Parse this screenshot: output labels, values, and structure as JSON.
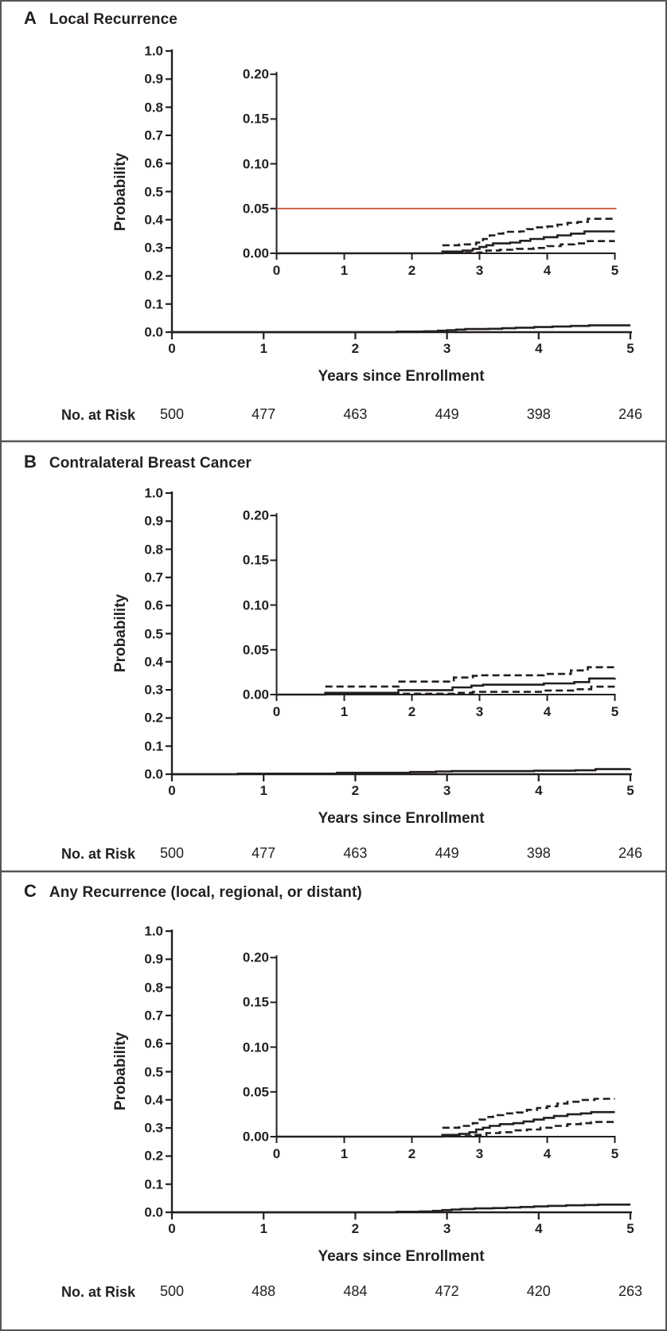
{
  "figure": {
    "border_color": "#55565a",
    "axis_color": "#231f20",
    "text_color": "#231f20",
    "reference_red": "#d0513b"
  },
  "chart_data": [
    {
      "type": "line",
      "panel": "A",
      "title": "Local Recurrence",
      "main_axes": {
        "ylabel": "Probability",
        "xlabel": "Years since Enrollment",
        "xlim": [
          0,
          5
        ],
        "ylim": [
          0,
          1
        ],
        "xticks": [
          "0",
          "1",
          "2",
          "3",
          "4",
          "5"
        ],
        "yticks": [
          "0.0",
          "0.1",
          "0.2",
          "0.3",
          "0.4",
          "0.5",
          "0.6",
          "0.7",
          "0.8",
          "0.9",
          "1.0"
        ],
        "grid": "off"
      },
      "inset_axes": {
        "xlim": [
          0,
          5
        ],
        "ylim": [
          0,
          0.2
        ],
        "xticks": [
          "0",
          "1",
          "2",
          "3",
          "4",
          "5"
        ],
        "yticks": [
          "0.00",
          "0.05",
          "0.10",
          "0.15",
          "0.20"
        ]
      },
      "reference_line": {
        "y": 0.05,
        "color": "#d0513b"
      },
      "series": [
        {
          "name": "estimate",
          "style": "solid",
          "points": [
            [
              0,
              0
            ],
            [
              2.45,
              0.002
            ],
            [
              2.75,
              0.003
            ],
            [
              2.9,
              0.005
            ],
            [
              3.0,
              0.007
            ],
            [
              3.1,
              0.009
            ],
            [
              3.2,
              0.011
            ],
            [
              3.45,
              0.012
            ],
            [
              3.6,
              0.014
            ],
            [
              3.75,
              0.016
            ],
            [
              3.95,
              0.018
            ],
            [
              4.15,
              0.02
            ],
            [
              4.35,
              0.022
            ],
            [
              4.55,
              0.0245
            ],
            [
              5,
              0.0245
            ]
          ]
        },
        {
          "name": "upper-95ci",
          "style": "dashed",
          "points": [
            [
              2.45,
              0.009
            ],
            [
              2.7,
              0.01
            ],
            [
              2.95,
              0.012
            ],
            [
              3.05,
              0.016
            ],
            [
              3.15,
              0.02
            ],
            [
              3.25,
              0.022
            ],
            [
              3.35,
              0.024
            ],
            [
              3.6,
              0.0245
            ],
            [
              3.7,
              0.027
            ],
            [
              3.85,
              0.029
            ],
            [
              4.0,
              0.03
            ],
            [
              4.15,
              0.032
            ],
            [
              4.3,
              0.034
            ],
            [
              4.45,
              0.035
            ],
            [
              4.6,
              0.0385
            ],
            [
              5,
              0.0385
            ]
          ]
        },
        {
          "name": "lower-95ci",
          "style": "dashed",
          "points": [
            [
              2.45,
              0.0005
            ],
            [
              3.0,
              0.001
            ],
            [
              3.1,
              0.003
            ],
            [
              3.3,
              0.004
            ],
            [
              3.55,
              0.005
            ],
            [
              3.8,
              0.006
            ],
            [
              4.0,
              0.008
            ],
            [
              4.2,
              0.01
            ],
            [
              4.4,
              0.011
            ],
            [
              4.6,
              0.0136
            ],
            [
              5,
              0.0136
            ]
          ]
        }
      ],
      "no_at_risk": {
        "label": "No. at Risk",
        "values": [
          "500",
          "477",
          "463",
          "449",
          "398",
          "246"
        ]
      }
    },
    {
      "type": "line",
      "panel": "B",
      "title": "Contralateral Breast Cancer",
      "main_axes": {
        "ylabel": "Probability",
        "xlabel": "Years since Enrollment",
        "xlim": [
          0,
          5
        ],
        "ylim": [
          0,
          1
        ],
        "xticks": [
          "0",
          "1",
          "2",
          "3",
          "4",
          "5"
        ],
        "yticks": [
          "0.0",
          "0.1",
          "0.2",
          "0.3",
          "0.4",
          "0.5",
          "0.6",
          "0.7",
          "0.8",
          "0.9",
          "1.0"
        ],
        "grid": "off"
      },
      "inset_axes": {
        "xlim": [
          0,
          5
        ],
        "ylim": [
          0,
          0.2
        ],
        "xticks": [
          "0",
          "1",
          "2",
          "3",
          "4",
          "5"
        ],
        "yticks": [
          "0.00",
          "0.05",
          "0.10",
          "0.15",
          "0.20"
        ]
      },
      "reference_line": null,
      "series": [
        {
          "name": "estimate",
          "style": "solid",
          "points": [
            [
              0,
              0
            ],
            [
              0.72,
              0.002
            ],
            [
              1.8,
              0.005
            ],
            [
              2.6,
              0.008
            ],
            [
              2.88,
              0.01
            ],
            [
              3.05,
              0.011
            ],
            [
              3.95,
              0.0125
            ],
            [
              4.4,
              0.014
            ],
            [
              4.62,
              0.018
            ],
            [
              5,
              0.0183
            ]
          ]
        },
        {
          "name": "upper-95ci",
          "style": "dashed",
          "points": [
            [
              0.72,
              0.009
            ],
            [
              1.8,
              0.0145
            ],
            [
              2.62,
              0.019
            ],
            [
              2.9,
              0.021
            ],
            [
              3.0,
              0.0215
            ],
            [
              3.95,
              0.023
            ],
            [
              4.35,
              0.027
            ],
            [
              4.6,
              0.0305
            ],
            [
              5,
              0.0309
            ]
          ]
        },
        {
          "name": "lower-95ci",
          "style": "dashed",
          "points": [
            [
              0.72,
              0.0005
            ],
            [
              1.8,
              0.001
            ],
            [
              2.62,
              0.002
            ],
            [
              2.9,
              0.003
            ],
            [
              3.95,
              0.0045
            ],
            [
              4.4,
              0.006
            ],
            [
              4.65,
              0.0088
            ],
            [
              5,
              0.0088
            ]
          ]
        }
      ],
      "no_at_risk": {
        "label": "No. at Risk",
        "values": [
          "500",
          "477",
          "463",
          "449",
          "398",
          "246"
        ]
      }
    },
    {
      "type": "line",
      "panel": "C",
      "title": "Any Recurrence (local, regional, or distant)",
      "main_axes": {
        "ylabel": "Probability",
        "xlabel": "Years since Enrollment",
        "xlim": [
          0,
          5
        ],
        "ylim": [
          0,
          1
        ],
        "xticks": [
          "0",
          "1",
          "2",
          "3",
          "4",
          "5"
        ],
        "yticks": [
          "0.0",
          "0.1",
          "0.2",
          "0.3",
          "0.4",
          "0.5",
          "0.6",
          "0.7",
          "0.8",
          "0.9",
          "1.0"
        ],
        "grid": "off"
      },
      "inset_axes": {
        "xlim": [
          0,
          5
        ],
        "ylim": [
          0,
          0.2
        ],
        "xticks": [
          "0",
          "1",
          "2",
          "3",
          "4",
          "5"
        ],
        "yticks": [
          "0.00",
          "0.05",
          "0.10",
          "0.15",
          "0.20"
        ]
      },
      "reference_line": null,
      "series": [
        {
          "name": "estimate",
          "style": "solid",
          "points": [
            [
              0,
              0
            ],
            [
              2.45,
              0.002
            ],
            [
              2.7,
              0.003
            ],
            [
              2.85,
              0.005
            ],
            [
              2.95,
              0.008
            ],
            [
              3.05,
              0.01
            ],
            [
              3.15,
              0.012
            ],
            [
              3.3,
              0.014
            ],
            [
              3.5,
              0.015
            ],
            [
              3.65,
              0.017
            ],
            [
              3.8,
              0.019
            ],
            [
              3.95,
              0.021
            ],
            [
              4.1,
              0.023
            ],
            [
              4.3,
              0.025
            ],
            [
              4.5,
              0.026
            ],
            [
              4.65,
              0.0274
            ],
            [
              5,
              0.0274
            ]
          ]
        },
        {
          "name": "upper-95ci",
          "style": "dashed",
          "points": [
            [
              2.45,
              0.01
            ],
            [
              2.7,
              0.012
            ],
            [
              2.9,
              0.015
            ],
            [
              3.0,
              0.019
            ],
            [
              3.1,
              0.022
            ],
            [
              3.2,
              0.024
            ],
            [
              3.35,
              0.026
            ],
            [
              3.55,
              0.027
            ],
            [
              3.7,
              0.03
            ],
            [
              3.85,
              0.032
            ],
            [
              4.0,
              0.034
            ],
            [
              4.15,
              0.037
            ],
            [
              4.3,
              0.039
            ],
            [
              4.5,
              0.041
            ],
            [
              4.7,
              0.0423
            ],
            [
              5,
              0.0423
            ]
          ]
        },
        {
          "name": "lower-95ci",
          "style": "dashed",
          "points": [
            [
              2.45,
              0.0005
            ],
            [
              2.9,
              0.002
            ],
            [
              3.1,
              0.004
            ],
            [
              3.3,
              0.005
            ],
            [
              3.5,
              0.007
            ],
            [
              3.7,
              0.008
            ],
            [
              3.9,
              0.01
            ],
            [
              4.1,
              0.012
            ],
            [
              4.3,
              0.014
            ],
            [
              4.5,
              0.015
            ],
            [
              4.65,
              0.0164
            ],
            [
              5,
              0.0164
            ]
          ]
        }
      ],
      "no_at_risk": {
        "label": "No. at Risk",
        "values": [
          "500",
          "488",
          "484",
          "472",
          "420",
          "263"
        ]
      }
    }
  ]
}
